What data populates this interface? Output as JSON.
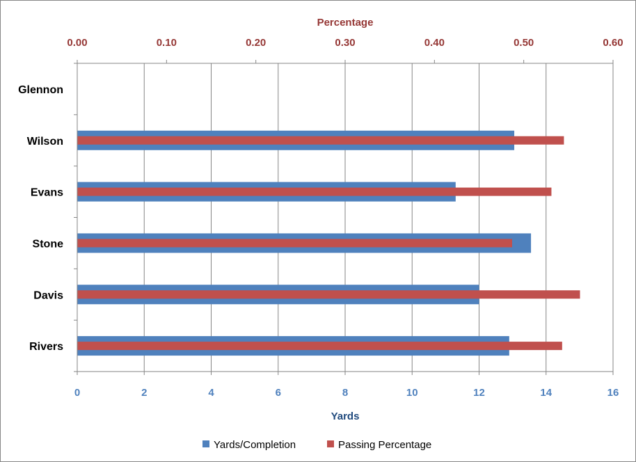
{
  "chart_data": {
    "type": "bar",
    "orientation": "horizontal",
    "categories": [
      "Rivers",
      "Davis",
      "Stone",
      "Evans",
      "Wilson",
      "Glennon"
    ],
    "series": [
      {
        "name": "Yards/Completion",
        "axis": "bottom",
        "color": "#4f81bd",
        "values": [
          12.9,
          12.0,
          13.55,
          11.3,
          13.05,
          null
        ]
      },
      {
        "name": "Passing Percentage",
        "axis": "top",
        "color": "#c0504d",
        "values": [
          0.543,
          0.563,
          0.487,
          0.531,
          0.545,
          null
        ]
      }
    ],
    "xlabel_bottom": "Yards",
    "xlabel_top": "Percentage",
    "xlim_bottom": [
      0,
      16
    ],
    "xlim_top": [
      0,
      0.6
    ],
    "ticks_bottom": [
      "0",
      "2",
      "4",
      "6",
      "8",
      "10",
      "12",
      "14",
      "16"
    ],
    "ticks_top": [
      "0.00",
      "0.10",
      "0.20",
      "0.30",
      "0.40",
      "0.50",
      "0.60"
    ],
    "grid": "vertical",
    "legend_position": "bottom"
  }
}
